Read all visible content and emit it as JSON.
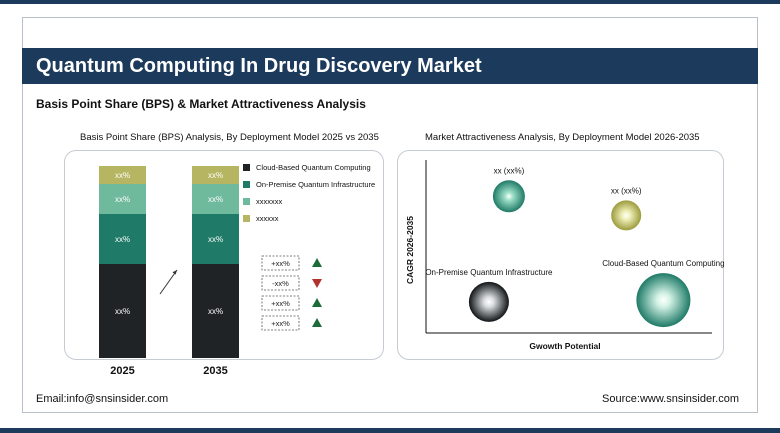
{
  "header": {
    "title": "Quantum Computing In Drug Discovery Market",
    "subtitle": "Basis Point Share (BPS) & Market Attractiveness Analysis"
  },
  "footer": {
    "email": "Email:info@snsinsider.com",
    "source": "Source:www.snsinsider.com"
  },
  "colors": {
    "brand_navy": "#1b3a5c",
    "cloud": "#202326",
    "on_premise": "#1f7a67",
    "series3": "#6fb99c",
    "series4": "#b6b561",
    "up_arrow": "#1e6b3a",
    "down_arrow": "#b2332e"
  },
  "chart_data": [
    {
      "type": "bar",
      "stacked": true,
      "title": "Basis Point Share (BPS) Analysis, By Deployment Model 2025 vs 2035",
      "categories": [
        "2025",
        "2035"
      ],
      "series": [
        {
          "name": "Cloud-Based Quantum Computing",
          "color": "#202326",
          "values": [
            47,
            47
          ],
          "labels": [
            "xx%",
            "xx%"
          ]
        },
        {
          "name": "On-Premise Quantum Infrastructure",
          "color": "#1f7a67",
          "values": [
            25,
            25
          ],
          "labels": [
            "xx%",
            "xx%"
          ]
        },
        {
          "name": "xxxxxxx",
          "color": "#6fb99c",
          "values": [
            15,
            15
          ],
          "labels": [
            "xx%",
            "xx%"
          ]
        },
        {
          "name": "xxxxxx",
          "color": "#b6b561",
          "values": [
            9,
            9
          ],
          "labels": [
            "xx%",
            "xx%"
          ]
        }
      ],
      "legend_position": "right",
      "changes": [
        {
          "label": "+xx%",
          "direction": "up"
        },
        {
          "label": "-xx%",
          "direction": "down"
        },
        {
          "label": "+xx%",
          "direction": "up"
        },
        {
          "label": "+xx%",
          "direction": "up"
        }
      ]
    },
    {
      "type": "scatter",
      "subtype": "bubble",
      "title": "Market Attractiveness Analysis, By Deployment Model 2026-2035",
      "xlabel": "Gwowth Potential",
      "ylabel": "CAGR 2026-2035",
      "xlim": [
        0,
        10
      ],
      "ylim": [
        0,
        10
      ],
      "points": [
        {
          "label": "xx (xx%)",
          "x": 2.9,
          "y": 7.9,
          "size": 16,
          "color": "#1f7a67",
          "highlight": "#9fe0c9"
        },
        {
          "label": "xx (xx%)",
          "x": 7.0,
          "y": 6.8,
          "size": 15,
          "color": "#9c9b3c",
          "highlight": "#f2f2bf"
        },
        {
          "label": "On-Premise Quantum Infrastructure",
          "x": 2.2,
          "y": 1.8,
          "size": 20,
          "color": "#111417",
          "highlight": "#d9dde0"
        },
        {
          "label": "Cloud-Based Quantum Computing",
          "x": 8.3,
          "y": 1.9,
          "size": 27,
          "color": "#1f7a67",
          "highlight": "#d3f2e6"
        }
      ]
    }
  ]
}
